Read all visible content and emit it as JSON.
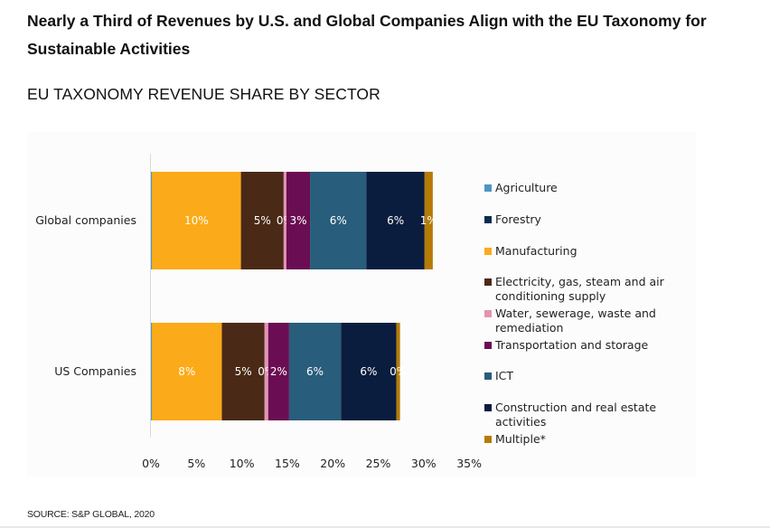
{
  "title": "Nearly a Third of Revenues by U.S. and Global Companies Align with the EU Taxonomy for Sustainable Activities",
  "subtitle": "EU TAXONOMY REVENUE SHARE BY SECTOR",
  "source": "SOURCE: S&P GLOBAL, 2020",
  "chart_data": {
    "type": "bar",
    "orientation": "horizontal",
    "stacked": true,
    "categories": [
      "Global companies",
      "US Companies"
    ],
    "xlim": [
      0,
      35
    ],
    "x_ticks": [
      "0%",
      "5%",
      "10%",
      "15%",
      "20%",
      "25%",
      "30%",
      "35%"
    ],
    "grid": false,
    "legend_position": "right",
    "series": [
      {
        "name": "Agriculture",
        "color": "#4e95c2",
        "values": [
          0.1,
          0.1
        ],
        "labels": [
          "",
          ""
        ]
      },
      {
        "name": "Forestry",
        "color": "#0b2c4e",
        "values": [
          0.0,
          0.0
        ],
        "labels": [
          "",
          ""
        ]
      },
      {
        "name": "Manufacturing",
        "color": "#fbaa1a",
        "values": [
          9.8,
          7.7
        ],
        "labels": [
          "10%",
          "8%"
        ]
      },
      {
        "name": "Electricity, gas, steam and air conditioning supply",
        "color": "#4a2a17",
        "values": [
          4.7,
          4.7
        ],
        "labels": [
          "5%",
          "5%"
        ]
      },
      {
        "name": "Water, sewerage, waste and remediation",
        "color": "#e394b3",
        "values": [
          0.3,
          0.4
        ],
        "labels": [
          "0%",
          "0%"
        ]
      },
      {
        "name": "Transportation and storage",
        "color": "#6b0d52",
        "values": [
          2.6,
          2.3
        ],
        "labels": [
          "3%",
          "2%"
        ]
      },
      {
        "name": "ICT",
        "color": "#285d7b",
        "values": [
          6.2,
          5.7
        ],
        "labels": [
          "6%",
          "6%"
        ]
      },
      {
        "name": "Construction and real estate activities",
        "color": "#0b1d3e",
        "values": [
          6.4,
          6.1
        ],
        "labels": [
          "6%",
          "6%"
        ]
      },
      {
        "name": "Multiple*",
        "color": "#b57b06",
        "values": [
          0.9,
          0.4
        ],
        "labels": [
          "1%",
          "0%"
        ]
      }
    ]
  }
}
